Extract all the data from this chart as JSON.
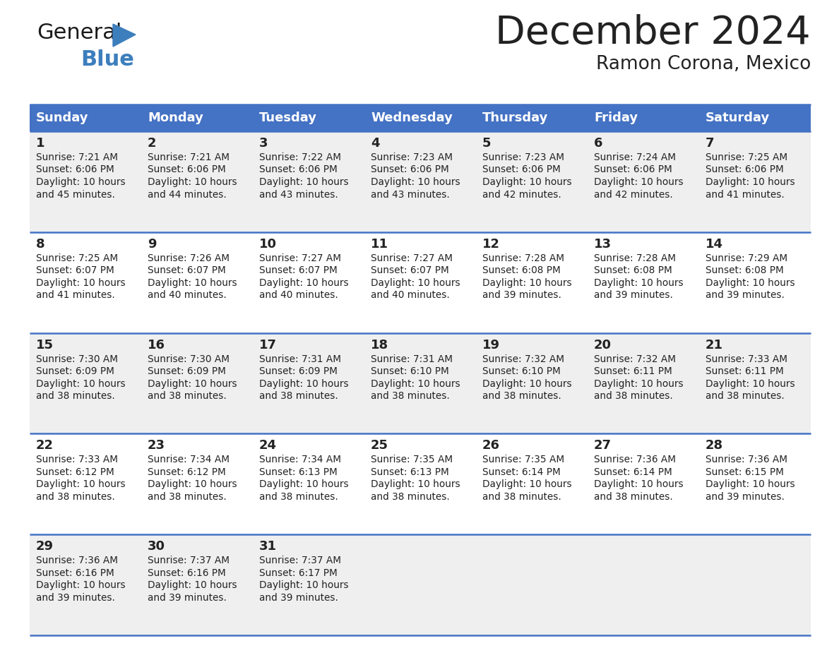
{
  "title": "December 2024",
  "subtitle": "Ramon Corona, Mexico",
  "header_color": "#4472C4",
  "header_text_color": "#FFFFFF",
  "row_border_color": "#4472C4",
  "text_color": "#222222",
  "background_color": "#FFFFFF",
  "alt_row_color": "#EFEFEF",
  "days_of_week": [
    "Sunday",
    "Monday",
    "Tuesday",
    "Wednesday",
    "Thursday",
    "Friday",
    "Saturday"
  ],
  "calendar_data": [
    [
      {
        "day": 1,
        "sunrise": "7:21 AM",
        "sunset": "6:06 PM",
        "daylight_hours": 10,
        "daylight_minutes": 45
      },
      {
        "day": 2,
        "sunrise": "7:21 AM",
        "sunset": "6:06 PM",
        "daylight_hours": 10,
        "daylight_minutes": 44
      },
      {
        "day": 3,
        "sunrise": "7:22 AM",
        "sunset": "6:06 PM",
        "daylight_hours": 10,
        "daylight_minutes": 43
      },
      {
        "day": 4,
        "sunrise": "7:23 AM",
        "sunset": "6:06 PM",
        "daylight_hours": 10,
        "daylight_minutes": 43
      },
      {
        "day": 5,
        "sunrise": "7:23 AM",
        "sunset": "6:06 PM",
        "daylight_hours": 10,
        "daylight_minutes": 42
      },
      {
        "day": 6,
        "sunrise": "7:24 AM",
        "sunset": "6:06 PM",
        "daylight_hours": 10,
        "daylight_minutes": 42
      },
      {
        "day": 7,
        "sunrise": "7:25 AM",
        "sunset": "6:06 PM",
        "daylight_hours": 10,
        "daylight_minutes": 41
      }
    ],
    [
      {
        "day": 8,
        "sunrise": "7:25 AM",
        "sunset": "6:07 PM",
        "daylight_hours": 10,
        "daylight_minutes": 41
      },
      {
        "day": 9,
        "sunrise": "7:26 AM",
        "sunset": "6:07 PM",
        "daylight_hours": 10,
        "daylight_minutes": 40
      },
      {
        "day": 10,
        "sunrise": "7:27 AM",
        "sunset": "6:07 PM",
        "daylight_hours": 10,
        "daylight_minutes": 40
      },
      {
        "day": 11,
        "sunrise": "7:27 AM",
        "sunset": "6:07 PM",
        "daylight_hours": 10,
        "daylight_minutes": 40
      },
      {
        "day": 12,
        "sunrise": "7:28 AM",
        "sunset": "6:08 PM",
        "daylight_hours": 10,
        "daylight_minutes": 39
      },
      {
        "day": 13,
        "sunrise": "7:28 AM",
        "sunset": "6:08 PM",
        "daylight_hours": 10,
        "daylight_minutes": 39
      },
      {
        "day": 14,
        "sunrise": "7:29 AM",
        "sunset": "6:08 PM",
        "daylight_hours": 10,
        "daylight_minutes": 39
      }
    ],
    [
      {
        "day": 15,
        "sunrise": "7:30 AM",
        "sunset": "6:09 PM",
        "daylight_hours": 10,
        "daylight_minutes": 38
      },
      {
        "day": 16,
        "sunrise": "7:30 AM",
        "sunset": "6:09 PM",
        "daylight_hours": 10,
        "daylight_minutes": 38
      },
      {
        "day": 17,
        "sunrise": "7:31 AM",
        "sunset": "6:09 PM",
        "daylight_hours": 10,
        "daylight_minutes": 38
      },
      {
        "day": 18,
        "sunrise": "7:31 AM",
        "sunset": "6:10 PM",
        "daylight_hours": 10,
        "daylight_minutes": 38
      },
      {
        "day": 19,
        "sunrise": "7:32 AM",
        "sunset": "6:10 PM",
        "daylight_hours": 10,
        "daylight_minutes": 38
      },
      {
        "day": 20,
        "sunrise": "7:32 AM",
        "sunset": "6:11 PM",
        "daylight_hours": 10,
        "daylight_minutes": 38
      },
      {
        "day": 21,
        "sunrise": "7:33 AM",
        "sunset": "6:11 PM",
        "daylight_hours": 10,
        "daylight_minutes": 38
      }
    ],
    [
      {
        "day": 22,
        "sunrise": "7:33 AM",
        "sunset": "6:12 PM",
        "daylight_hours": 10,
        "daylight_minutes": 38
      },
      {
        "day": 23,
        "sunrise": "7:34 AM",
        "sunset": "6:12 PM",
        "daylight_hours": 10,
        "daylight_minutes": 38
      },
      {
        "day": 24,
        "sunrise": "7:34 AM",
        "sunset": "6:13 PM",
        "daylight_hours": 10,
        "daylight_minutes": 38
      },
      {
        "day": 25,
        "sunrise": "7:35 AM",
        "sunset": "6:13 PM",
        "daylight_hours": 10,
        "daylight_minutes": 38
      },
      {
        "day": 26,
        "sunrise": "7:35 AM",
        "sunset": "6:14 PM",
        "daylight_hours": 10,
        "daylight_minutes": 38
      },
      {
        "day": 27,
        "sunrise": "7:36 AM",
        "sunset": "6:14 PM",
        "daylight_hours": 10,
        "daylight_minutes": 38
      },
      {
        "day": 28,
        "sunrise": "7:36 AM",
        "sunset": "6:15 PM",
        "daylight_hours": 10,
        "daylight_minutes": 39
      }
    ],
    [
      {
        "day": 29,
        "sunrise": "7:36 AM",
        "sunset": "6:16 PM",
        "daylight_hours": 10,
        "daylight_minutes": 39
      },
      {
        "day": 30,
        "sunrise": "7:37 AM",
        "sunset": "6:16 PM",
        "daylight_hours": 10,
        "daylight_minutes": 39
      },
      {
        "day": 31,
        "sunrise": "7:37 AM",
        "sunset": "6:17 PM",
        "daylight_hours": 10,
        "daylight_minutes": 39
      },
      null,
      null,
      null,
      null
    ]
  ],
  "logo_general_color": "#1a1a1a",
  "logo_blue_color": "#3D7EBD",
  "fig_width": 11.88,
  "fig_height": 9.18,
  "dpi": 100
}
